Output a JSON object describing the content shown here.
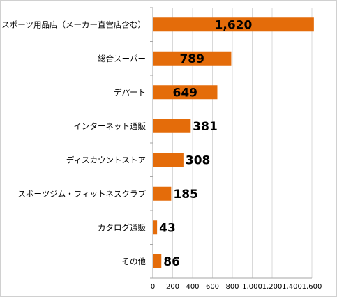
{
  "chart_data": {
    "type": "bar",
    "orientation": "horizontal",
    "categories": [
      "スポーツ用品店（メーカー直営店含む）",
      "総合スーパー",
      "デパート",
      "インターネット通販",
      "ディスカウントストア",
      "スポーツジム・フィットネスクラブ",
      "カタログ通販",
      "その他"
    ],
    "values": [
      1620,
      789,
      649,
      381,
      308,
      185,
      43,
      86
    ],
    "value_labels": [
      "1,620",
      "789",
      "649",
      "381",
      "308",
      "185",
      "43",
      "86"
    ],
    "x_ticks": [
      "0",
      "200",
      "400",
      "600",
      "800",
      "1,000",
      "1,200",
      "1,400",
      "1,600"
    ],
    "xlim": [
      0,
      1600
    ],
    "title": "",
    "xlabel": "",
    "ylabel": "",
    "grid": "vertical",
    "legend": "none",
    "colors": {
      "bar": "#e46c0a",
      "grid": "#d9d9d9",
      "axis": "#a6a6a6"
    }
  }
}
